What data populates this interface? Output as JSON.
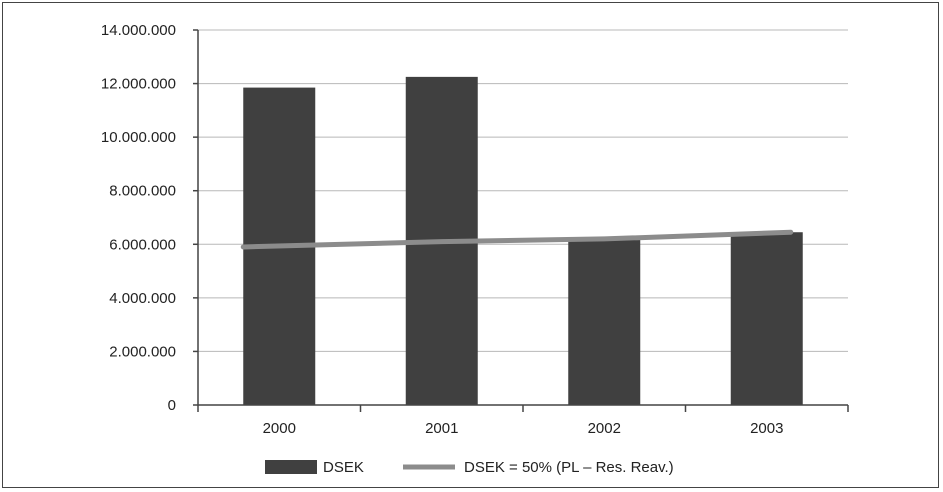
{
  "chart_data": {
    "type": "bar",
    "categories": [
      "2000",
      "2001",
      "2002",
      "2003"
    ],
    "series": [
      {
        "name": "DSEK",
        "type": "bar",
        "values": [
          11850000,
          12250000,
          6200000,
          6450000
        ],
        "color": "#404040"
      },
      {
        "name": "DSEK = 50% (PL – Res. Reav.)",
        "type": "line",
        "values": [
          5900000,
          6100000,
          6200000,
          6450000
        ],
        "color": "#8c8c8c"
      }
    ],
    "ylim": [
      0,
      14000000
    ],
    "yticks": [
      "0",
      "2.000.000",
      "4.000.000",
      "6.000.000",
      "8.000.000",
      "10.000.000",
      "12.000.000",
      "14.000.000"
    ],
    "ytick_values": [
      0,
      2000000,
      4000000,
      6000000,
      8000000,
      10000000,
      12000000,
      14000000
    ],
    "grid": true,
    "legend_position": "bottom",
    "title": "",
    "xlabel": "",
    "ylabel": ""
  }
}
